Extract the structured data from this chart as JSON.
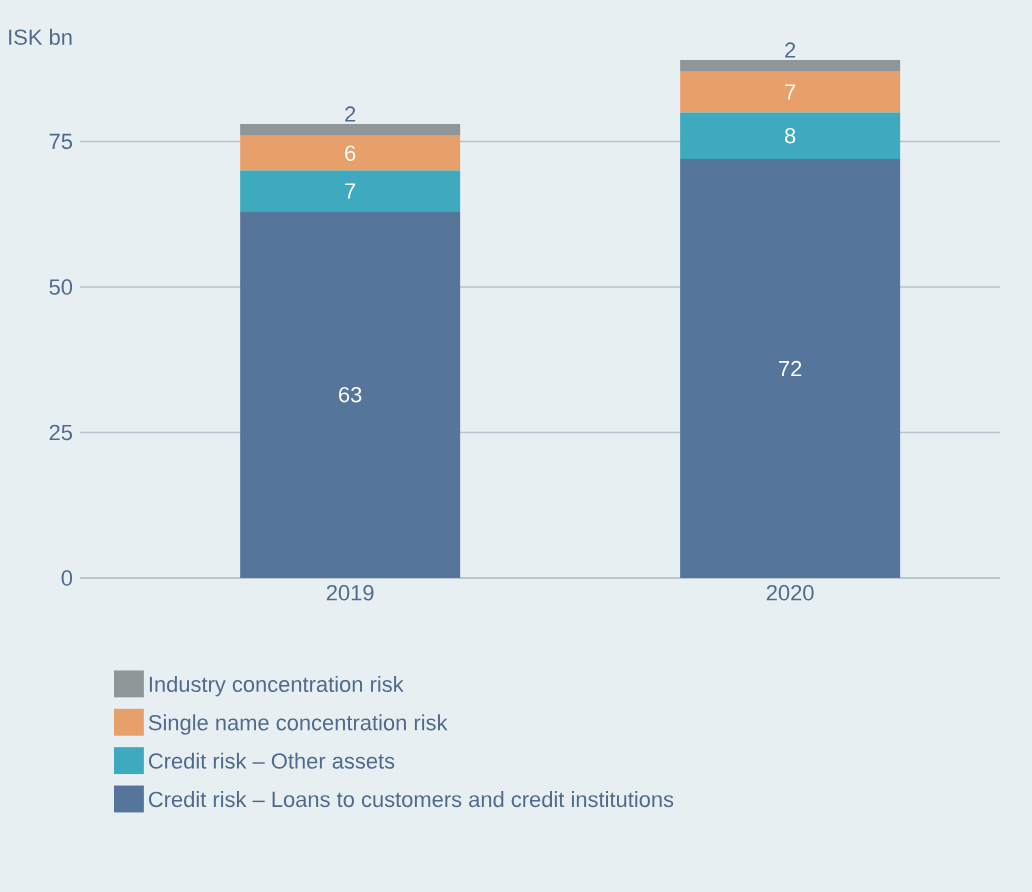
{
  "chart_data": {
    "type": "bar",
    "stacked": true,
    "ylabel": "ISK bn",
    "categories": [
      "2019",
      "2020"
    ],
    "series": [
      {
        "name": "Credit risk – Loans to customers and credit institutions",
        "color": "#56759a",
        "values": [
          63,
          72
        ]
      },
      {
        "name": "Credit risk – Other assets",
        "color": "#3eaabd",
        "values": [
          7,
          8
        ]
      },
      {
        "name": "Single name concentration risk",
        "color": "#e8a06a",
        "values": [
          6,
          7
        ]
      },
      {
        "name": "Industry concentration risk",
        "color": "#8e9698",
        "values": [
          2,
          2
        ]
      }
    ],
    "ylim": [
      0,
      89
    ],
    "yticks": [
      0,
      25,
      50,
      75
    ],
    "grid": "y",
    "legend": "bottom",
    "data_labels": true
  }
}
